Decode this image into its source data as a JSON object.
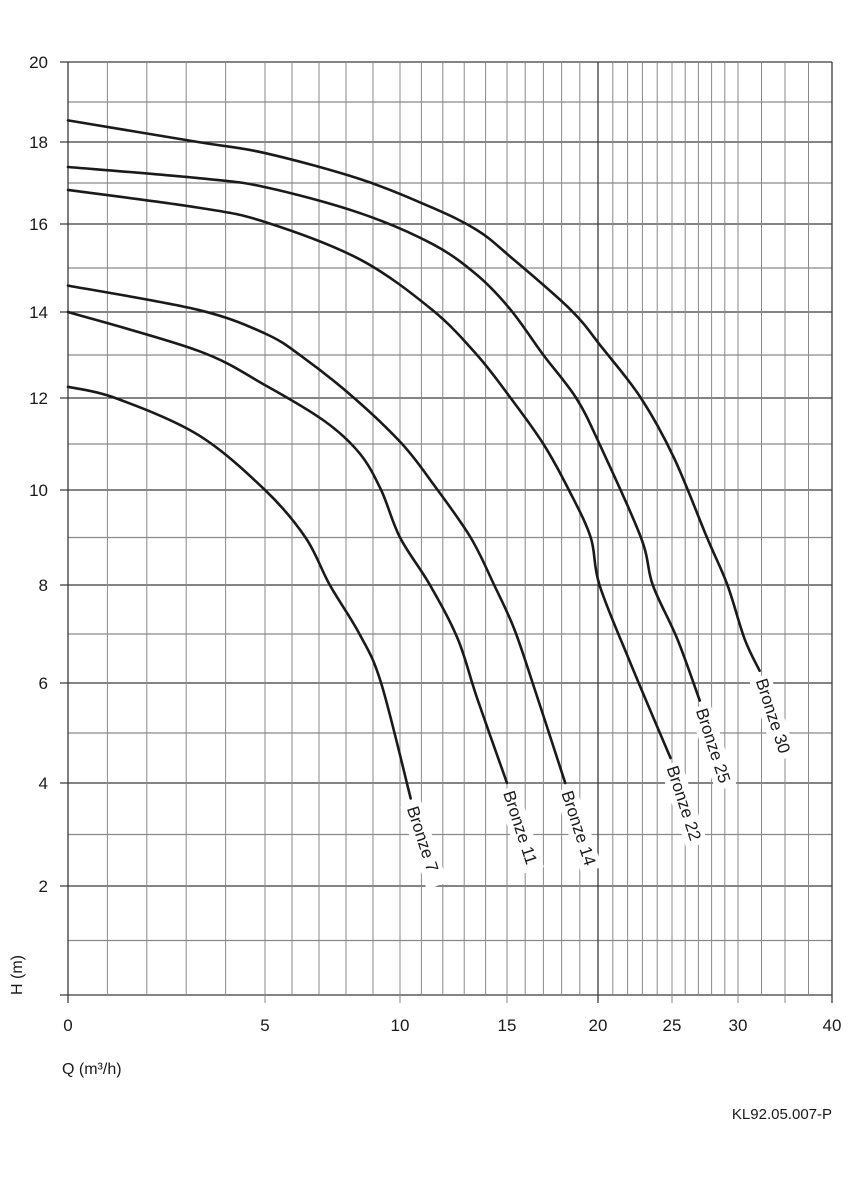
{
  "chart_data": {
    "type": "line",
    "title": "",
    "xlabel": "Q (m³/h)",
    "ylabel": "H (m)",
    "xlim": [
      0,
      40
    ],
    "ylim": [
      0,
      20
    ],
    "x_scale": "nonlinear (compressed toward high Q)",
    "x_ticks": [
      "0",
      "5",
      "10",
      "15",
      "20",
      "25",
      "30",
      "40"
    ],
    "y_ticks": [
      "2",
      "4",
      "6",
      "8",
      "10",
      "12",
      "14",
      "16",
      "18",
      "20"
    ],
    "grid": true,
    "legend": "inline labels at curve ends",
    "line_color": "#1a1a1a",
    "series": [
      {
        "name": "Bronze 7",
        "points": [
          [
            0,
            12.26
          ],
          [
            1.2,
            12
          ],
          [
            3.3,
            11.2
          ],
          [
            5,
            10
          ],
          [
            6.5,
            9
          ],
          [
            7.4,
            8
          ],
          [
            8.5,
            7
          ],
          [
            9.3,
            6
          ],
          [
            10.5,
            3.7
          ]
        ]
      },
      {
        "name": "Bronze 11",
        "points": [
          [
            0,
            14
          ],
          [
            3.3,
            13.1
          ],
          [
            5,
            12.3
          ],
          [
            7.2,
            11.5
          ],
          [
            8.5,
            10.8
          ],
          [
            9.3,
            10
          ],
          [
            10,
            9
          ],
          [
            11.4,
            8
          ],
          [
            12.7,
            6.9
          ],
          [
            13.6,
            5.7
          ],
          [
            15,
            4
          ]
        ]
      },
      {
        "name": "Bronze 14",
        "points": [
          [
            0,
            14.6
          ],
          [
            3.3,
            14.05
          ],
          [
            5,
            13.5
          ],
          [
            6.4,
            12.95
          ],
          [
            8.3,
            12
          ],
          [
            10.1,
            11
          ],
          [
            11.6,
            10.1
          ],
          [
            13.3,
            9
          ],
          [
            14.4,
            8
          ],
          [
            15.4,
            7.1
          ],
          [
            16.5,
            5.9
          ],
          [
            18.2,
            4
          ]
        ]
      },
      {
        "name": "Bronze 22",
        "points": [
          [
            0,
            16.83
          ],
          [
            3.3,
            16.4
          ],
          [
            5,
            16.05
          ],
          [
            8.5,
            15.2
          ],
          [
            11.5,
            14.05
          ],
          [
            13.6,
            13
          ],
          [
            15.2,
            12
          ],
          [
            17,
            11
          ],
          [
            18.4,
            10
          ],
          [
            19.6,
            9
          ],
          [
            20.1,
            8
          ],
          [
            22.2,
            6.4
          ],
          [
            24.9,
            4.5
          ]
        ]
      },
      {
        "name": "Bronze 25",
        "points": [
          [
            0,
            17.39
          ],
          [
            3.3,
            17.12
          ],
          [
            5,
            16.9
          ],
          [
            8.5,
            16.27
          ],
          [
            11.5,
            15.55
          ],
          [
            13.6,
            14.84
          ],
          [
            15.2,
            14.05
          ],
          [
            17,
            13
          ],
          [
            18.8,
            12
          ],
          [
            20.1,
            11
          ],
          [
            22.9,
            9
          ],
          [
            23.7,
            8
          ],
          [
            25.4,
            6.9
          ],
          [
            27.1,
            5.65
          ]
        ]
      },
      {
        "name": "Bronze 30",
        "points": [
          [
            0,
            18.54
          ],
          [
            3.3,
            18
          ],
          [
            5,
            17.73
          ],
          [
            8.5,
            17.1
          ],
          [
            11.5,
            16.4
          ],
          [
            13.6,
            15.86
          ],
          [
            15.2,
            15.25
          ],
          [
            18.5,
            14.05
          ],
          [
            20.3,
            13.16
          ],
          [
            22.9,
            12
          ],
          [
            25.15,
            10.7
          ],
          [
            27.65,
            9
          ],
          [
            29.2,
            8
          ],
          [
            30.7,
            6.9
          ],
          [
            32.3,
            6.25
          ]
        ]
      }
    ]
  },
  "footer": {
    "code": "KL92.05.007-P"
  }
}
